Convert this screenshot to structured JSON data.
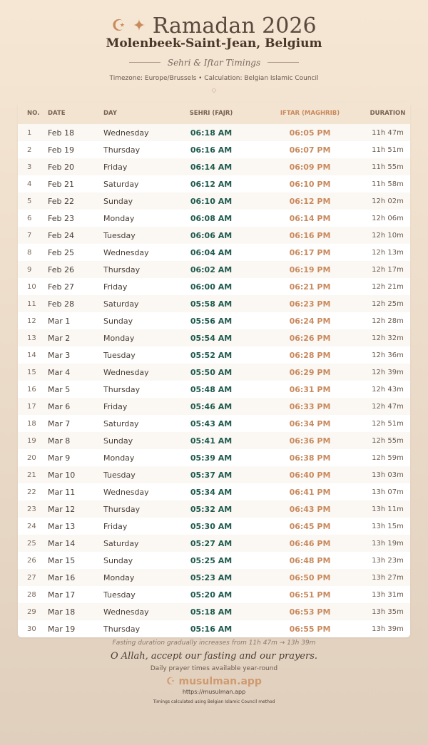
{
  "header": {
    "title": "Ramadan 2026",
    "icons": [
      "crescent-icon",
      "star-icon"
    ],
    "city": "Molenbeek-Saint-Jean, Belgium",
    "subtitle": "Sehri & Iftar Timings",
    "meta": "Timezone: Europe/Brussels • Calculation: Belgian Islamic Council",
    "ornament": "◇"
  },
  "table": {
    "columns": [
      "NO.",
      "DATE",
      "DAY",
      "SEHRI (FAJR)",
      "IFTAR (MAGHRIB)",
      "DURATION"
    ],
    "rows": [
      [
        "1",
        "Feb 18",
        "Wednesday",
        "06:18 AM",
        "06:05 PM",
        "11h 47m"
      ],
      [
        "2",
        "Feb 19",
        "Thursday",
        "06:16 AM",
        "06:07 PM",
        "11h 51m"
      ],
      [
        "3",
        "Feb 20",
        "Friday",
        "06:14 AM",
        "06:09 PM",
        "11h 55m"
      ],
      [
        "4",
        "Feb 21",
        "Saturday",
        "06:12 AM",
        "06:10 PM",
        "11h 58m"
      ],
      [
        "5",
        "Feb 22",
        "Sunday",
        "06:10 AM",
        "06:12 PM",
        "12h 02m"
      ],
      [
        "6",
        "Feb 23",
        "Monday",
        "06:08 AM",
        "06:14 PM",
        "12h 06m"
      ],
      [
        "7",
        "Feb 24",
        "Tuesday",
        "06:06 AM",
        "06:16 PM",
        "12h 10m"
      ],
      [
        "8",
        "Feb 25",
        "Wednesday",
        "06:04 AM",
        "06:17 PM",
        "12h 13m"
      ],
      [
        "9",
        "Feb 26",
        "Thursday",
        "06:02 AM",
        "06:19 PM",
        "12h 17m"
      ],
      [
        "10",
        "Feb 27",
        "Friday",
        "06:00 AM",
        "06:21 PM",
        "12h 21m"
      ],
      [
        "11",
        "Feb 28",
        "Saturday",
        "05:58 AM",
        "06:23 PM",
        "12h 25m"
      ],
      [
        "12",
        "Mar 1",
        "Sunday",
        "05:56 AM",
        "06:24 PM",
        "12h 28m"
      ],
      [
        "13",
        "Mar 2",
        "Monday",
        "05:54 AM",
        "06:26 PM",
        "12h 32m"
      ],
      [
        "14",
        "Mar 3",
        "Tuesday",
        "05:52 AM",
        "06:28 PM",
        "12h 36m"
      ],
      [
        "15",
        "Mar 4",
        "Wednesday",
        "05:50 AM",
        "06:29 PM",
        "12h 39m"
      ],
      [
        "16",
        "Mar 5",
        "Thursday",
        "05:48 AM",
        "06:31 PM",
        "12h 43m"
      ],
      [
        "17",
        "Mar 6",
        "Friday",
        "05:46 AM",
        "06:33 PM",
        "12h 47m"
      ],
      [
        "18",
        "Mar 7",
        "Saturday",
        "05:43 AM",
        "06:34 PM",
        "12h 51m"
      ],
      [
        "19",
        "Mar 8",
        "Sunday",
        "05:41 AM",
        "06:36 PM",
        "12h 55m"
      ],
      [
        "20",
        "Mar 9",
        "Monday",
        "05:39 AM",
        "06:38 PM",
        "12h 59m"
      ],
      [
        "21",
        "Mar 10",
        "Tuesday",
        "05:37 AM",
        "06:40 PM",
        "13h 03m"
      ],
      [
        "22",
        "Mar 11",
        "Wednesday",
        "05:34 AM",
        "06:41 PM",
        "13h 07m"
      ],
      [
        "23",
        "Mar 12",
        "Thursday",
        "05:32 AM",
        "06:43 PM",
        "13h 11m"
      ],
      [
        "24",
        "Mar 13",
        "Friday",
        "05:30 AM",
        "06:45 PM",
        "13h 15m"
      ],
      [
        "25",
        "Mar 14",
        "Saturday",
        "05:27 AM",
        "06:46 PM",
        "13h 19m"
      ],
      [
        "26",
        "Mar 15",
        "Sunday",
        "05:25 AM",
        "06:48 PM",
        "13h 23m"
      ],
      [
        "27",
        "Mar 16",
        "Monday",
        "05:23 AM",
        "06:50 PM",
        "13h 27m"
      ],
      [
        "28",
        "Mar 17",
        "Tuesday",
        "05:20 AM",
        "06:51 PM",
        "13h 31m"
      ],
      [
        "29",
        "Mar 18",
        "Wednesday",
        "05:18 AM",
        "06:53 PM",
        "13h 35m"
      ],
      [
        "30",
        "Mar 19",
        "Thursday",
        "05:16 AM",
        "06:55 PM",
        "13h 39m"
      ]
    ]
  },
  "footer": {
    "note": "Fasting duration gradually increases from 11h 47m → 13h 39m",
    "dua": "O Allah, accept our fasting and our prayers.",
    "daily": "Daily prayer times available year-round",
    "brand": "musulman.app",
    "url": "https://musulman.app",
    "calc": "Timings calculated using Belgian Islamic Council method"
  },
  "colors": {
    "sehri": "#1f5a4e",
    "iftar": "#c98a5e",
    "header_bg": "#f3e4d2"
  }
}
